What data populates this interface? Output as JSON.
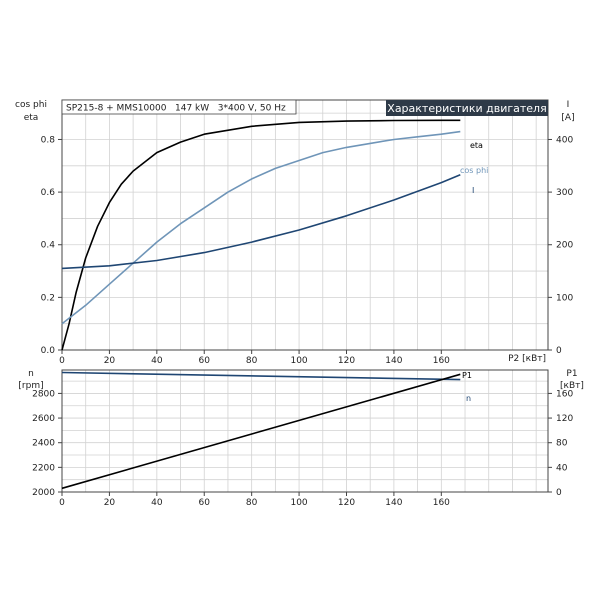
{
  "chart_data": [
    {
      "type": "line",
      "title": "Характеристики двигателя",
      "subtitle": "SP215-8 + MMS10000   147 kW   3*400 V, 50 Hz",
      "xlabel": "P2 [кВт]",
      "ylabel_left": [
        "cos phi",
        "eta"
      ],
      "ylabel_right": [
        "I",
        "[A]"
      ],
      "x_ticks": [
        "0",
        "20",
        "40",
        "60",
        "80",
        "100",
        "120",
        "140",
        "160"
      ],
      "y_left_ticks": [
        "0.0",
        "0.2",
        "0.4",
        "0.6",
        "0.8"
      ],
      "y_right_ticks": [
        "0",
        "100",
        "200",
        "300",
        "400"
      ],
      "xlim": [
        0,
        205
      ],
      "ylim_left": [
        0,
        0.95
      ],
      "ylim_right": [
        0,
        475
      ],
      "grid": true,
      "series": [
        {
          "name": "eta",
          "axis": "left",
          "color": "#000000",
          "x": [
            0,
            3,
            6,
            10,
            15,
            20,
            25,
            30,
            40,
            50,
            60,
            80,
            100,
            120,
            140,
            160,
            168
          ],
          "y": [
            0.0,
            0.1,
            0.22,
            0.35,
            0.47,
            0.56,
            0.63,
            0.68,
            0.75,
            0.79,
            0.82,
            0.85,
            0.865,
            0.87,
            0.872,
            0.873,
            0.873
          ]
        },
        {
          "name": "cos phi",
          "axis": "left",
          "color": "#6f95b8",
          "x": [
            0,
            10,
            20,
            30,
            40,
            50,
            60,
            70,
            80,
            90,
            100,
            110,
            120,
            130,
            140,
            150,
            160,
            168
          ],
          "y": [
            0.1,
            0.17,
            0.25,
            0.33,
            0.41,
            0.48,
            0.54,
            0.6,
            0.65,
            0.69,
            0.72,
            0.75,
            0.77,
            0.785,
            0.8,
            0.81,
            0.82,
            0.83
          ]
        },
        {
          "name": "I",
          "axis": "right",
          "color": "#1f4673",
          "x": [
            0,
            20,
            40,
            60,
            80,
            100,
            120,
            140,
            160,
            168
          ],
          "y": [
            155,
            160,
            170,
            185,
            205,
            228,
            255,
            285,
            318,
            333
          ]
        }
      ]
    },
    {
      "type": "line",
      "xlabel": "",
      "ylabel_left": [
        "n",
        "[rpm]"
      ],
      "ylabel_right": [
        "P1",
        "[кВт]"
      ],
      "x_ticks": [
        "0",
        "20",
        "40",
        "60",
        "80",
        "100",
        "120",
        "140",
        "160"
      ],
      "y_left_ticks": [
        "2000",
        "2200",
        "2400",
        "2600",
        "2800"
      ],
      "y_right_ticks": [
        "0",
        "40",
        "80",
        "120",
        "160"
      ],
      "xlim": [
        0,
        205
      ],
      "ylim_left": [
        2000,
        2990
      ],
      "ylim_right": [
        0,
        198
      ],
      "grid": true,
      "series": [
        {
          "name": "n",
          "axis": "left",
          "color": "#1f4673",
          "x": [
            0,
            168
          ],
          "y": [
            2970,
            2912
          ]
        },
        {
          "name": "P1",
          "axis": "right",
          "color": "#000000",
          "x": [
            0,
            168
          ],
          "y": [
            6,
            191
          ]
        }
      ]
    }
  ]
}
